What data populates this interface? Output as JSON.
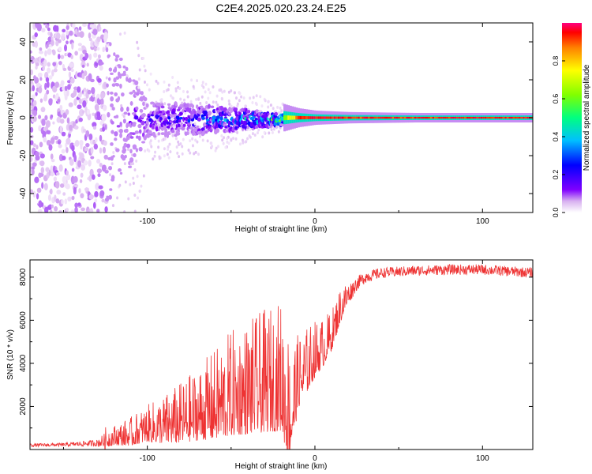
{
  "figure": {
    "title": "C2E4.2025.020.23.24.E25"
  },
  "chart_data": [
    {
      "type": "heatmap",
      "title": "",
      "xlabel": "Height of straight line (km)",
      "ylabel": "Frequency (Hz)",
      "xlim": [
        -170,
        130
      ],
      "ylim": [
        -50,
        50
      ],
      "xticks": [
        -100,
        0,
        100
      ],
      "yticks": [
        -40,
        -20,
        0,
        20,
        40
      ],
      "grid": false,
      "description_of_values": "Spectral power vs frequency offset and height: broad scatter for heights < -125 km, narrowing band around 0 Hz, single strong line at 0 Hz for heights > -20 km",
      "colorbar": {
        "label": "Normalized spectral amplitude",
        "range": [
          0,
          1
        ],
        "ticks": [
          "0.0",
          "0.2",
          "0.4",
          "0.6",
          "0.8"
        ],
        "colormap": [
          "#ffffff",
          "#d8b0f0",
          "#8000ff",
          "#0000ff",
          "#00c0ff",
          "#00ff80",
          "#80ff00",
          "#ffff00",
          "#ff8000",
          "#ff0000",
          "#ff0080"
        ]
      },
      "band": {
        "x": [
          -170,
          -125,
          -100,
          -75,
          -50,
          -30,
          -20,
          -10,
          0,
          20,
          60,
          100,
          130
        ],
        "halfwidth_hz": [
          50,
          45,
          9,
          8,
          6,
          4,
          3,
          2,
          1.5,
          1.2,
          1.0,
          1.0,
          1.0
        ],
        "peak_amplitude": [
          0.05,
          0.1,
          0.25,
          0.3,
          0.4,
          0.5,
          0.6,
          0.9,
          1.0,
          0.95,
          0.95,
          0.95,
          0.95
        ]
      }
    },
    {
      "type": "line",
      "title": "",
      "xlabel": "Height of straight line (km)",
      "ylabel": "SNR (10 * v/v)",
      "xlim": [
        -170,
        130
      ],
      "ylim": [
        0,
        8800
      ],
      "xticks": [
        -100,
        0,
        100
      ],
      "yticks": [
        2000,
        4000,
        6000,
        8000
      ],
      "grid": false,
      "series": [
        {
          "color": "#ee3333",
          "x": [
            -170,
            -150,
            -130,
            -125,
            -120,
            -110,
            -100,
            -90,
            -80,
            -70,
            -60,
            -50,
            -40,
            -30,
            -20,
            -15,
            -10,
            -5,
            0,
            5,
            10,
            15,
            20,
            25,
            30,
            40,
            50,
            60,
            80,
            100,
            120,
            130
          ],
          "values": [
            200,
            220,
            300,
            400,
            500,
            600,
            900,
            1000,
            1200,
            1500,
            1800,
            2200,
            2400,
            2600,
            2800,
            1200,
            3000,
            3600,
            4200,
            4600,
            5200,
            6400,
            7200,
            7700,
            8000,
            8200,
            8250,
            8300,
            8350,
            8350,
            8250,
            8200
          ],
          "noise_envelope": [
            100,
            100,
            200,
            500,
            500,
            700,
            900,
            1200,
            1500,
            1800,
            2200,
            2600,
            2800,
            3000,
            3200,
            3200,
            1800,
            1600,
            1400,
            1200,
            1000,
            900,
            600,
            400,
            350,
            300,
            300,
            300,
            300,
            300,
            300,
            300
          ]
        }
      ]
    }
  ]
}
